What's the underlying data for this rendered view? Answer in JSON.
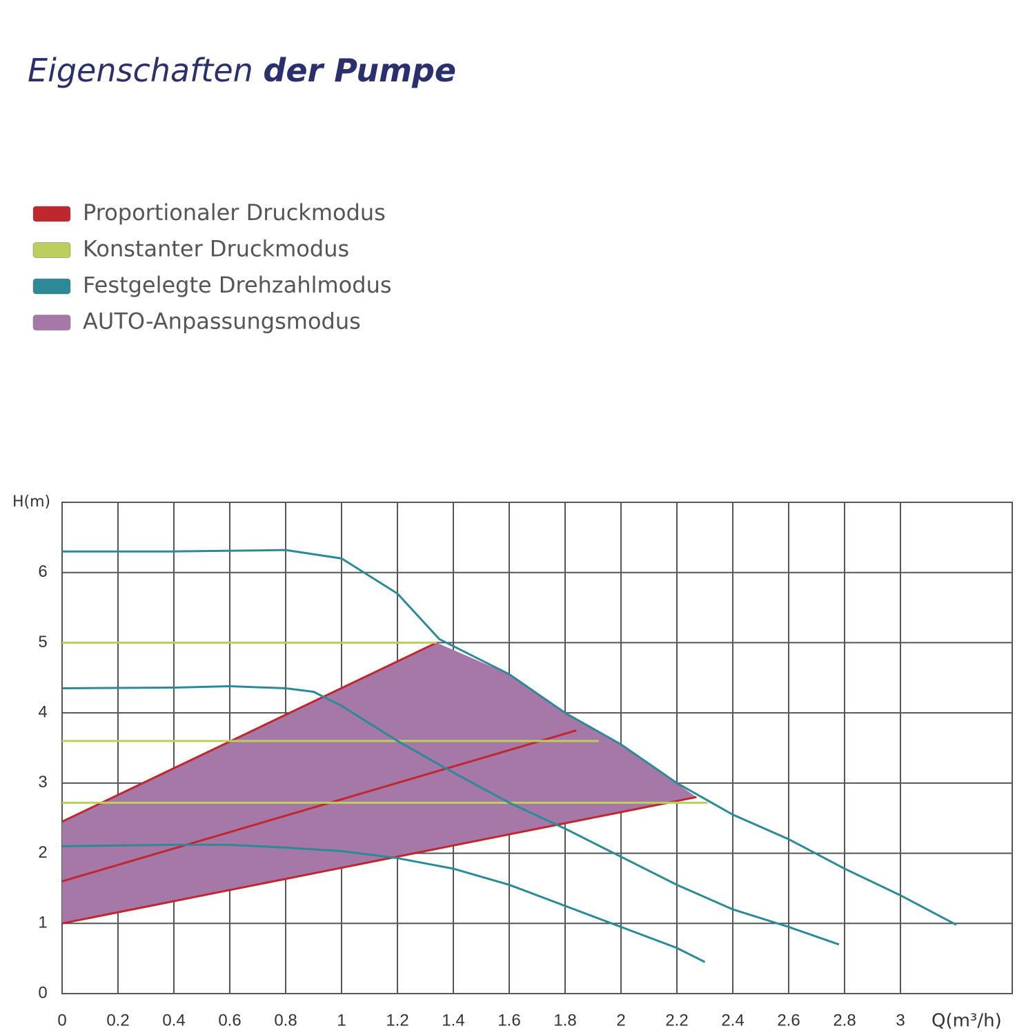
{
  "chart_data": {
    "type": "line",
    "title_parts": [
      "Eigenschaften",
      "der Pumpe"
    ],
    "ylabel": "H(m)",
    "xlabel": "Q(m³/h)",
    "xlim": [
      0,
      3.4
    ],
    "ylim": [
      0,
      7
    ],
    "xticks": [
      0,
      0.2,
      0.4,
      0.6,
      0.8,
      1,
      1.2,
      1.4,
      1.6,
      1.8,
      2,
      2.2,
      2.4,
      2.6,
      2.8,
      3
    ],
    "yticks": [
      0,
      1,
      2,
      3,
      4,
      5,
      6
    ],
    "grid": true,
    "legend": "top-left",
    "series": [
      {
        "name": "Proportionaler Druckmodus",
        "color": "#c0272d",
        "fill": false,
        "lines": [
          {
            "x": [
              0,
              1.34
            ],
            "y": [
              2.45,
              5.0
            ]
          },
          {
            "x": [
              0,
              1.84
            ],
            "y": [
              1.6,
              3.75
            ]
          },
          {
            "x": [
              0,
              2.27
            ],
            "y": [
              1.0,
              2.8
            ]
          }
        ]
      },
      {
        "name": "Konstanter Druckmodus",
        "color": "#bccf5c",
        "fill": false,
        "lines": [
          {
            "x": [
              0,
              1.34
            ],
            "y": [
              5.0,
              5.0
            ]
          },
          {
            "x": [
              0,
              1.92
            ],
            "y": [
              3.6,
              3.6
            ]
          },
          {
            "x": [
              0,
              2.31
            ],
            "y": [
              2.72,
              2.72
            ]
          }
        ]
      },
      {
        "name": "Festgelegte Drehzahlmodus",
        "color": "#2b8a96",
        "fill": false,
        "lines": [
          {
            "x": [
              0,
              0.4,
              0.8,
              1.0,
              1.2,
              1.35,
              1.6,
              1.8,
              2.0,
              2.2,
              2.4,
              2.6,
              2.8,
              3.0,
              3.2
            ],
            "y": [
              6.3,
              6.3,
              6.32,
              6.2,
              5.7,
              5.05,
              4.55,
              4.0,
              3.55,
              3.0,
              2.55,
              2.2,
              1.78,
              1.4,
              0.98
            ]
          },
          {
            "x": [
              0,
              0.4,
              0.6,
              0.8,
              0.9,
              1.0,
              1.2,
              1.4,
              1.6,
              1.8,
              2.0,
              2.2,
              2.4,
              2.6,
              2.78
            ],
            "y": [
              4.35,
              4.36,
              4.38,
              4.35,
              4.3,
              4.1,
              3.6,
              3.15,
              2.72,
              2.35,
              1.95,
              1.55,
              1.2,
              0.95,
              0.7
            ]
          },
          {
            "x": [
              0,
              0.4,
              0.6,
              0.8,
              1.0,
              1.2,
              1.4,
              1.6,
              1.8,
              2.0,
              2.2,
              2.3
            ],
            "y": [
              2.1,
              2.12,
              2.12,
              2.08,
              2.03,
              1.93,
              1.78,
              1.55,
              1.25,
              0.95,
              0.65,
              0.45
            ]
          }
        ]
      },
      {
        "name": "AUTO-Anpassungsmodus",
        "color": "#a678a8",
        "fill": true,
        "lines": [
          {
            "x": [
              0,
              0,
              1.34,
              1.6,
              1.8,
              2.0,
              2.27
            ],
            "y": [
              1.0,
              2.45,
              5.0,
              4.55,
              4.0,
              3.55,
              2.8
            ]
          }
        ]
      }
    ]
  }
}
